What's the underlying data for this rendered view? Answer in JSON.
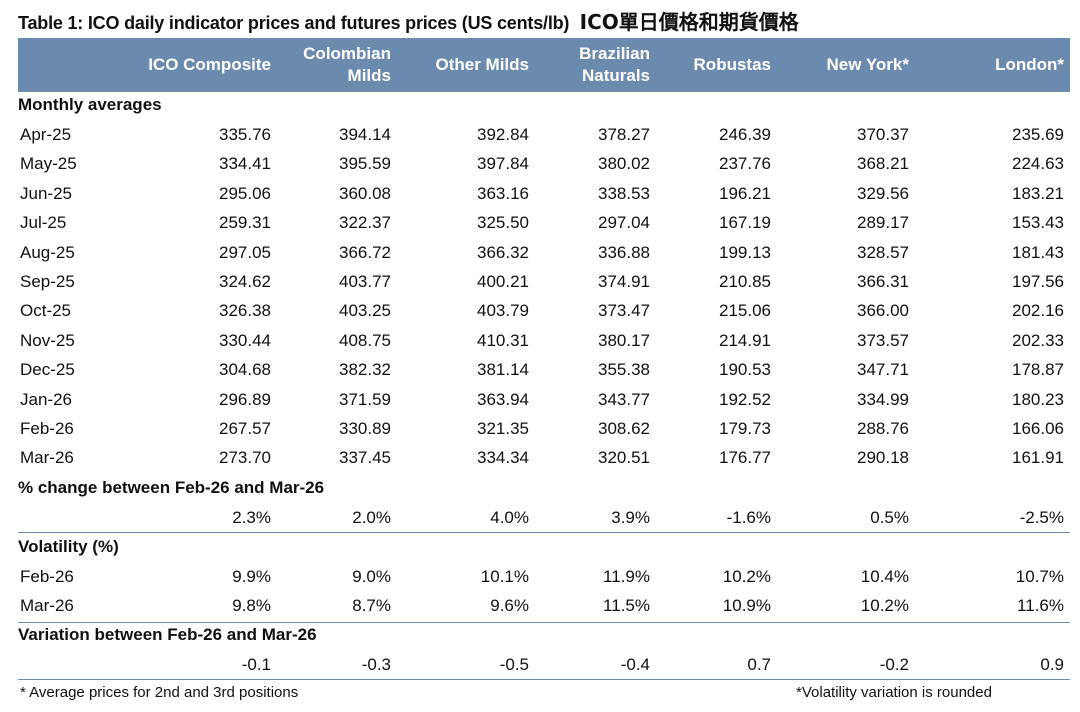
{
  "title": "Table 1: ICO daily indicator prices and futures prices (US cents/lb)",
  "title_zh": "ICO單日價格和期貨價格",
  "headers": [
    {
      "lines": [
        "ICO Composite"
      ]
    },
    {
      "lines": [
        "Colombian",
        "Milds"
      ]
    },
    {
      "lines": [
        "Other Milds"
      ]
    },
    {
      "lines": [
        "Brazilian",
        "Naturals"
      ]
    },
    {
      "lines": [
        "Robustas"
      ]
    },
    {
      "lines": [
        "New York*"
      ]
    },
    {
      "lines": [
        "London*"
      ]
    }
  ],
  "sections": {
    "monthly": {
      "title": "Monthly averages",
      "rows": [
        {
          "label": "Apr-25",
          "values": [
            "335.76",
            "394.14",
            "392.84",
            "378.27",
            "246.39",
            "370.37",
            "235.69"
          ]
        },
        {
          "label": "May-25",
          "values": [
            "334.41",
            "395.59",
            "397.84",
            "380.02",
            "237.76",
            "368.21",
            "224.63"
          ]
        },
        {
          "label": "Jun-25",
          "values": [
            "295.06",
            "360.08",
            "363.16",
            "338.53",
            "196.21",
            "329.56",
            "183.21"
          ]
        },
        {
          "label": "Jul-25",
          "values": [
            "259.31",
            "322.37",
            "325.50",
            "297.04",
            "167.19",
            "289.17",
            "153.43"
          ]
        },
        {
          "label": "Aug-25",
          "values": [
            "297.05",
            "366.72",
            "366.32",
            "336.88",
            "199.13",
            "328.57",
            "181.43"
          ]
        },
        {
          "label": "Sep-25",
          "values": [
            "324.62",
            "403.77",
            "400.21",
            "374.91",
            "210.85",
            "366.31",
            "197.56"
          ]
        },
        {
          "label": "Oct-25",
          "values": [
            "326.38",
            "403.25",
            "403.79",
            "373.47",
            "215.06",
            "366.00",
            "202.16"
          ]
        },
        {
          "label": "Nov-25",
          "values": [
            "330.44",
            "408.75",
            "410.31",
            "380.17",
            "214.91",
            "373.57",
            "202.33"
          ]
        },
        {
          "label": "Dec-25",
          "values": [
            "304.68",
            "382.32",
            "381.14",
            "355.38",
            "190.53",
            "347.71",
            "178.87"
          ]
        },
        {
          "label": "Jan-26",
          "values": [
            "296.89",
            "371.59",
            "363.94",
            "343.77",
            "192.52",
            "334.99",
            "180.23"
          ]
        },
        {
          "label": "Feb-26",
          "values": [
            "267.57",
            "330.89",
            "321.35",
            "308.62",
            "179.73",
            "288.76",
            "166.06"
          ]
        },
        {
          "label": "Mar-26",
          "values": [
            "273.70",
            "337.45",
            "334.34",
            "320.51",
            "176.77",
            "290.18",
            "161.91"
          ]
        }
      ]
    },
    "pct_change": {
      "title": "% change between Feb-26 and Mar-26",
      "rows": [
        {
          "label": "",
          "values": [
            "2.3%",
            "2.0%",
            "4.0%",
            "3.9%",
            "-1.6%",
            "0.5%",
            "-2.5%"
          ]
        }
      ]
    },
    "volatility": {
      "title": "Volatility (%)",
      "rows": [
        {
          "label": "Feb-26",
          "values": [
            "9.9%",
            "9.0%",
            "10.1%",
            "11.9%",
            "10.2%",
            "10.4%",
            "10.7%"
          ]
        },
        {
          "label": "Mar-26",
          "values": [
            "9.8%",
            "8.7%",
            "9.6%",
            "11.5%",
            "10.9%",
            "10.2%",
            "11.6%"
          ]
        }
      ]
    },
    "variation": {
      "title": "Variation between Feb-26 and Mar-26",
      "rows": [
        {
          "label": "",
          "values": [
            "-0.1",
            "-0.3",
            "-0.5",
            "-0.4",
            "0.7",
            "-0.2",
            "0.9"
          ]
        }
      ]
    }
  },
  "footnote_left": "* Average prices for 2nd and 3rd positions",
  "footnote_right": "*Volatility variation is rounded",
  "colors": {
    "header_bg": "#6b8bae",
    "header_text": "#ffffff",
    "rule": "#6b8bae"
  }
}
